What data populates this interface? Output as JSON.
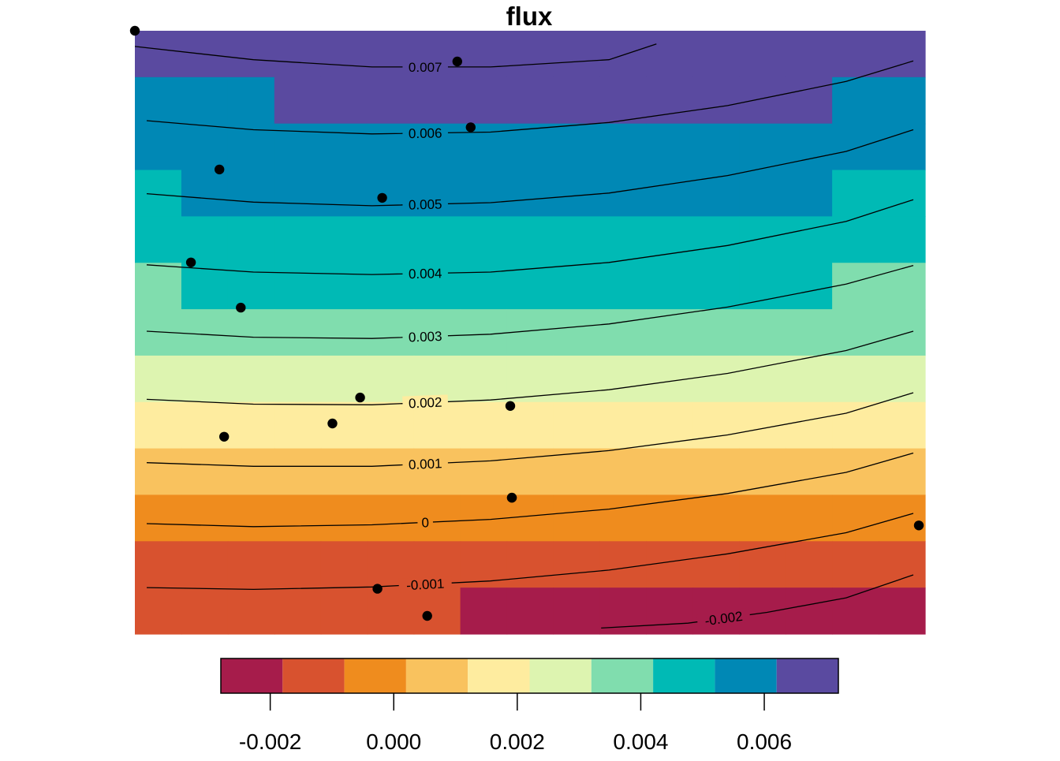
{
  "chart_data": {
    "type": "heatmap",
    "title": "flux",
    "xlabel": "",
    "ylabel": "",
    "xlim": [
      0,
      1
    ],
    "ylim": [
      0,
      1
    ],
    "legend_placement": "bottom",
    "color_breaks": [
      -0.0028,
      -0.0018,
      -0.0008,
      0.0002,
      0.0012,
      0.0022,
      0.0032,
      0.0042,
      0.0052,
      0.0062,
      0.0072
    ],
    "colors": [
      "#A61C4B",
      "#D8522F",
      "#EF8C1E",
      "#F9C25E",
      "#FEEC9F",
      "#DDF4B0",
      "#80DDAE",
      "#00BAB5",
      "#0088B5",
      "#5A4AA0"
    ],
    "colorbar": {
      "ticks": [
        -0.002,
        0.0,
        0.002,
        0.004,
        0.006
      ],
      "tick_labels": [
        "-0.002",
        "0.000",
        "0.002",
        "0.004",
        "0.006"
      ]
    },
    "raster": {
      "ncol": 17,
      "nrow": 13,
      "levels": [
        [
          9,
          9,
          9,
          9,
          9,
          9,
          9,
          9,
          9,
          9,
          9,
          9,
          9,
          9,
          9,
          9,
          9
        ],
        [
          8,
          8,
          8,
          9,
          9,
          9,
          9,
          9,
          9,
          9,
          9,
          9,
          9,
          9,
          9,
          8,
          8
        ],
        [
          8,
          8,
          8,
          8,
          8,
          8,
          8,
          8,
          8,
          8,
          8,
          8,
          8,
          8,
          8,
          8,
          8
        ],
        [
          7,
          8,
          8,
          8,
          8,
          8,
          8,
          8,
          8,
          8,
          8,
          8,
          8,
          8,
          8,
          7,
          7
        ],
        [
          7,
          7,
          7,
          7,
          7,
          7,
          7,
          7,
          7,
          7,
          7,
          7,
          7,
          7,
          7,
          7,
          7
        ],
        [
          6,
          7,
          7,
          7,
          7,
          7,
          7,
          7,
          7,
          7,
          7,
          7,
          7,
          7,
          7,
          6,
          6
        ],
        [
          6,
          6,
          6,
          6,
          6,
          6,
          6,
          6,
          6,
          6,
          6,
          6,
          6,
          6,
          6,
          6,
          6
        ],
        [
          5,
          5,
          5,
          5,
          5,
          5,
          5,
          5,
          5,
          5,
          5,
          5,
          5,
          5,
          5,
          5,
          5
        ],
        [
          4,
          4,
          4,
          4,
          4,
          4,
          4,
          4,
          4,
          4,
          4,
          4,
          4,
          4,
          4,
          4,
          4
        ],
        [
          3,
          3,
          3,
          3,
          3,
          3,
          3,
          3,
          3,
          3,
          3,
          3,
          3,
          3,
          3,
          3,
          3
        ],
        [
          2,
          2,
          2,
          2,
          2,
          2,
          2,
          2,
          2,
          2,
          2,
          2,
          2,
          2,
          2,
          2,
          2
        ],
        [
          1,
          1,
          1,
          1,
          1,
          1,
          1,
          1,
          1,
          1,
          1,
          1,
          1,
          1,
          1,
          1,
          1
        ],
        [
          1,
          1,
          1,
          1,
          1,
          1,
          1,
          0,
          0,
          0,
          0,
          0,
          0,
          0,
          0,
          0,
          0
        ]
      ]
    },
    "contours": [
      {
        "label": "0.007",
        "x": [
          0.0,
          0.15,
          0.3,
          0.45,
          0.6,
          0.66
        ],
        "y": [
          0.974,
          0.952,
          0.94,
          0.94,
          0.952,
          0.978
        ]
      },
      {
        "label": "0.006",
        "x": [
          0.015,
          0.15,
          0.3,
          0.45,
          0.6,
          0.75,
          0.9,
          0.985
        ],
        "y": [
          0.851,
          0.836,
          0.829,
          0.832,
          0.848,
          0.876,
          0.916,
          0.95
        ]
      },
      {
        "label": "0.005",
        "x": [
          0.015,
          0.15,
          0.3,
          0.45,
          0.6,
          0.75,
          0.9,
          0.985
        ],
        "y": [
          0.73,
          0.716,
          0.71,
          0.715,
          0.731,
          0.76,
          0.8,
          0.836
        ]
      },
      {
        "label": "0.004",
        "x": [
          0.015,
          0.15,
          0.3,
          0.45,
          0.6,
          0.75,
          0.9,
          0.985
        ],
        "y": [
          0.612,
          0.6,
          0.596,
          0.6,
          0.616,
          0.644,
          0.684,
          0.72
        ]
      },
      {
        "label": "0.003",
        "x": [
          0.015,
          0.15,
          0.3,
          0.45,
          0.6,
          0.75,
          0.9,
          0.985
        ],
        "y": [
          0.502,
          0.492,
          0.49,
          0.497,
          0.514,
          0.542,
          0.58,
          0.611
        ]
      },
      {
        "label": "0.002",
        "x": [
          0.015,
          0.15,
          0.3,
          0.45,
          0.6,
          0.75,
          0.9,
          0.985
        ],
        "y": [
          0.389,
          0.381,
          0.38,
          0.388,
          0.405,
          0.432,
          0.47,
          0.502
        ]
      },
      {
        "label": "0.001",
        "x": [
          0.015,
          0.15,
          0.3,
          0.45,
          0.6,
          0.75,
          0.9,
          0.985
        ],
        "y": [
          0.284,
          0.278,
          0.278,
          0.287,
          0.304,
          0.33,
          0.366,
          0.4
        ]
      },
      {
        "label": "0",
        "x": [
          0.015,
          0.15,
          0.3,
          0.45,
          0.6,
          0.75,
          0.9,
          0.985
        ],
        "y": [
          0.183,
          0.178,
          0.181,
          0.19,
          0.207,
          0.233,
          0.268,
          0.3
        ]
      },
      {
        "label": "-0.001",
        "x": [
          0.015,
          0.15,
          0.3,
          0.45,
          0.6,
          0.75,
          0.9,
          0.985
        ],
        "y": [
          0.077,
          0.074,
          0.078,
          0.088,
          0.106,
          0.133,
          0.168,
          0.2
        ]
      },
      {
        "label": "-0.002",
        "x": [
          0.59,
          0.7,
          0.8,
          0.9,
          0.985
        ],
        "y": [
          0.01,
          0.018,
          0.036,
          0.06,
          0.098
        ]
      }
    ],
    "points": {
      "x": [
        0.0,
        0.408,
        0.425,
        0.107,
        0.313,
        0.071,
        0.134,
        0.285,
        0.475,
        0.25,
        0.113,
        0.477,
        0.477,
        0.992,
        0.307,
        0.37
      ],
      "y": [
        1.0,
        0.949,
        0.84,
        0.77,
        0.723,
        0.616,
        0.541,
        0.392,
        0.378,
        0.349,
        0.327,
        0.226,
        0.226,
        0.18,
        0.075,
        0.03
      ]
    }
  }
}
